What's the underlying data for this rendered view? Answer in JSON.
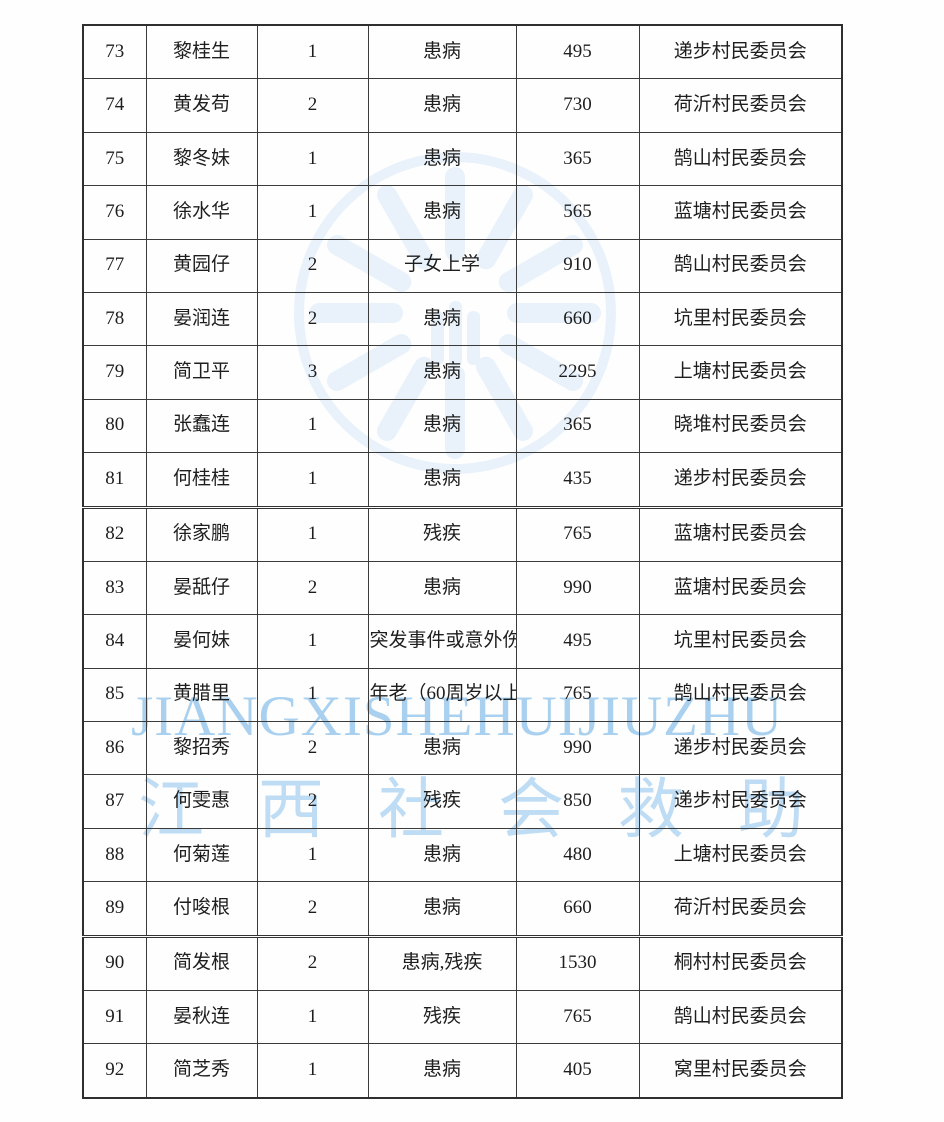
{
  "watermark": {
    "latin": "JIANGXISHEHUIJIUZHU",
    "chinese": "江西社会救助",
    "latin_color": "#a9d1ef",
    "chinese_color": "#bedcf4",
    "emblem_color": "#e9f2fb"
  },
  "table": {
    "double_rule_before_nos": [
      "82",
      "90"
    ],
    "rows": [
      {
        "no": "73",
        "name": "黎桂生",
        "count": "1",
        "reason": "患病",
        "amount": "495",
        "village": "递步村民委员会"
      },
      {
        "no": "74",
        "name": "黄发苟",
        "count": "2",
        "reason": "患病",
        "amount": "730",
        "village": "荷沂村民委员会"
      },
      {
        "no": "75",
        "name": "黎冬妹",
        "count": "1",
        "reason": "患病",
        "amount": "365",
        "village": "鹄山村民委员会"
      },
      {
        "no": "76",
        "name": "徐水华",
        "count": "1",
        "reason": "患病",
        "amount": "565",
        "village": "蓝塘村民委员会"
      },
      {
        "no": "77",
        "name": "黄园仔",
        "count": "2",
        "reason": "子女上学",
        "amount": "910",
        "village": "鹄山村民委员会"
      },
      {
        "no": "78",
        "name": "晏润连",
        "count": "2",
        "reason": "患病",
        "amount": "660",
        "village": "坑里村民委员会"
      },
      {
        "no": "79",
        "name": "简卫平",
        "count": "3",
        "reason": "患病",
        "amount": "2295",
        "village": "上塘村民委员会"
      },
      {
        "no": "80",
        "name": "张蠢连",
        "count": "1",
        "reason": "患病",
        "amount": "365",
        "village": "晓堆村民委员会"
      },
      {
        "no": "81",
        "name": "何桂桂",
        "count": "1",
        "reason": "患病",
        "amount": "435",
        "village": "递步村民委员会"
      },
      {
        "no": "82",
        "name": "徐家鹏",
        "count": "1",
        "reason": "残疾",
        "amount": "765",
        "village": "蓝塘村民委员会"
      },
      {
        "no": "83",
        "name": "晏舐仔",
        "count": "2",
        "reason": "患病",
        "amount": "990",
        "village": "蓝塘村民委员会"
      },
      {
        "no": "84",
        "name": "晏何妹",
        "count": "1",
        "reason": "突发事件或意外伤",
        "amount": "495",
        "village": "坑里村民委员会"
      },
      {
        "no": "85",
        "name": "黄腊里",
        "count": "1",
        "reason": "年老（60周岁以上",
        "amount": "765",
        "village": "鹄山村民委员会"
      },
      {
        "no": "86",
        "name": "黎招秀",
        "count": "2",
        "reason": "患病",
        "amount": "990",
        "village": "递步村民委员会"
      },
      {
        "no": "87",
        "name": "何雯惠",
        "count": "2",
        "reason": "残疾",
        "amount": "850",
        "village": "递步村民委员会"
      },
      {
        "no": "88",
        "name": "何菊莲",
        "count": "1",
        "reason": "患病",
        "amount": "480",
        "village": "上塘村民委员会"
      },
      {
        "no": "89",
        "name": "付唆根",
        "count": "2",
        "reason": "患病",
        "amount": "660",
        "village": "荷沂村民委员会"
      },
      {
        "no": "90",
        "name": "简发根",
        "count": "2",
        "reason": "患病,残疾",
        "amount": "1530",
        "village": "桐村村民委员会"
      },
      {
        "no": "91",
        "name": "晏秋连",
        "count": "1",
        "reason": "残疾",
        "amount": "765",
        "village": "鹄山村民委员会"
      },
      {
        "no": "92",
        "name": "简芝秀",
        "count": "1",
        "reason": "患病",
        "amount": "405",
        "village": "窝里村民委员会"
      }
    ]
  }
}
